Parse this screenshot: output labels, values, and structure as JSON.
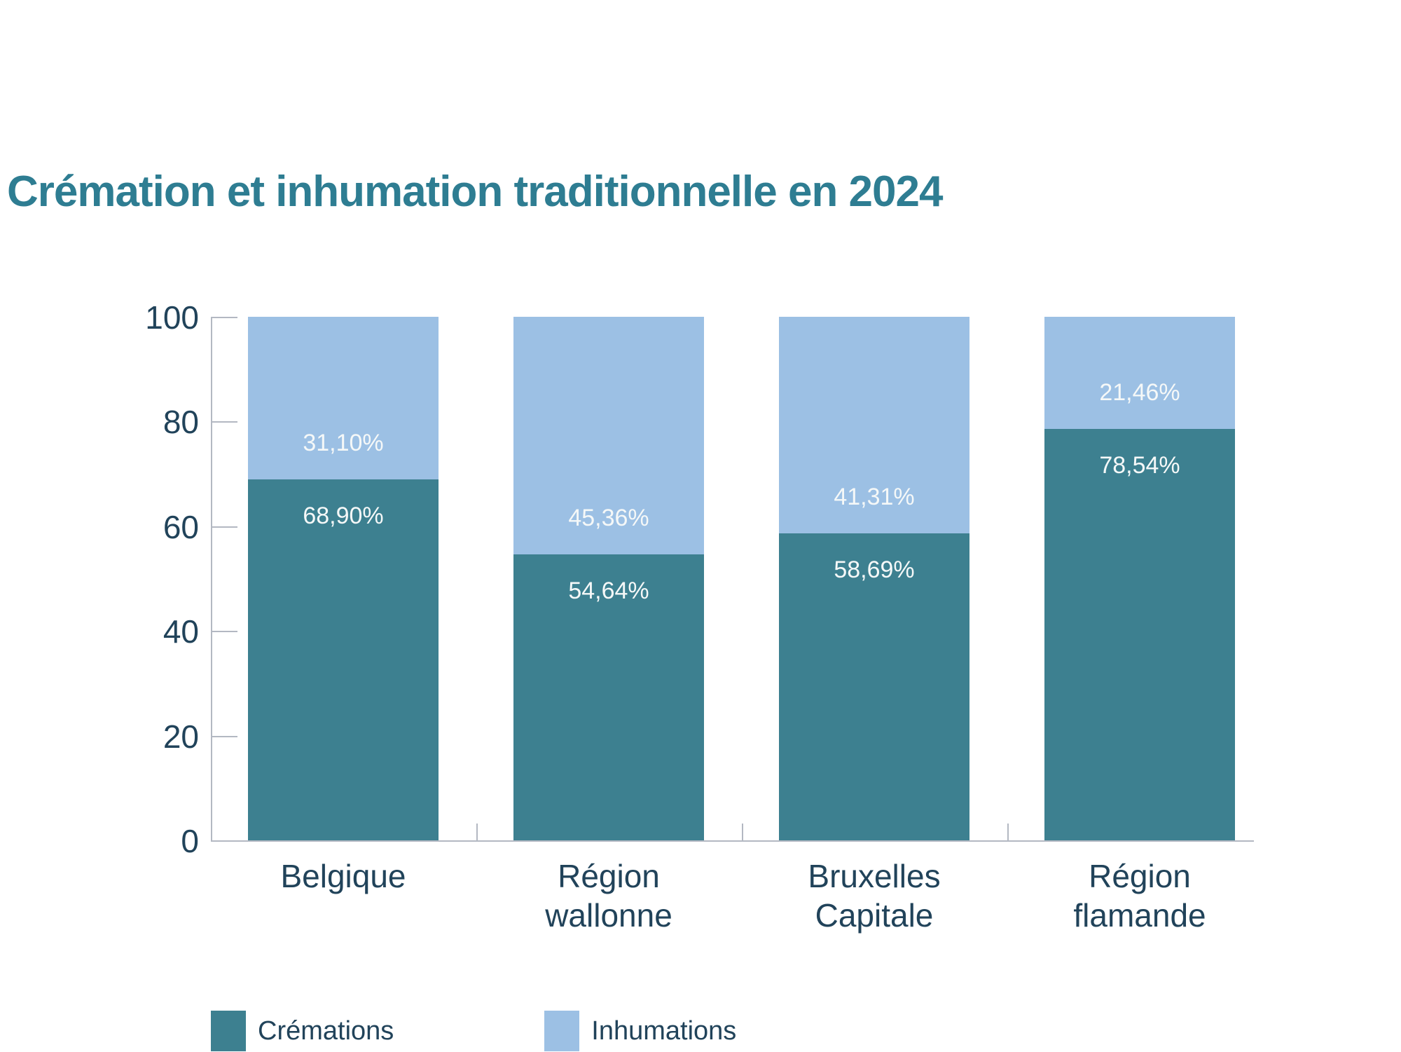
{
  "title": "Crémation et inhumation traditionnelle en 2024",
  "colors": {
    "cremations": "#3d8090",
    "inhumations": "#9cc0e4",
    "title": "#2e7d92",
    "text_dark": "#21435a",
    "axis": "#b3b8c2",
    "value_label": "#f5f8f8",
    "background": "#ffffff"
  },
  "chart_data": {
    "type": "bar",
    "stacked": true,
    "title": "Crémation et inhumation traditionnelle en 2024",
    "categories": [
      "Belgique",
      "Région wallonne",
      "Bruxelles Capitale",
      "Région flamande"
    ],
    "category_lines": [
      [
        "Belgique"
      ],
      [
        "Région",
        "wallonne"
      ],
      [
        "Bruxelles",
        "Capitale"
      ],
      [
        "Région",
        "flamande"
      ]
    ],
    "series": [
      {
        "name": "Crémations",
        "color": "#3d8090",
        "values": [
          68.9,
          54.64,
          58.69,
          78.54
        ],
        "labels": [
          "68,90%",
          "54,64%",
          "58,69%",
          "78,54%"
        ]
      },
      {
        "name": "Inhumations",
        "color": "#9cc0e4",
        "values": [
          31.1,
          45.36,
          41.31,
          21.46
        ],
        "labels": [
          "31,10%",
          "45,36%",
          "41,31%",
          "21,46%"
        ]
      }
    ],
    "xlabel": "",
    "ylabel": "",
    "ylim": [
      0,
      100
    ],
    "yticks": [
      0,
      20,
      40,
      60,
      80,
      100
    ],
    "grid": false,
    "legend_position": "bottom-left"
  },
  "legend": {
    "items": [
      {
        "label": "Crémations",
        "color": "#3d8090"
      },
      {
        "label": "Inhumations",
        "color": "#9cc0e4"
      }
    ]
  }
}
